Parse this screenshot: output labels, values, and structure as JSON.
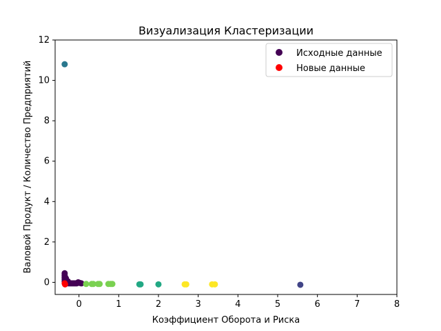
{
  "chart_data": {
    "type": "scatter",
    "title": "Визуализация Кластеризации",
    "xlabel": "Коэффициент Оборота и Риска",
    "ylabel": "Валовой Продукт / Количество Предприятий",
    "xlim": [
      -0.6,
      8
    ],
    "ylim": [
      -0.6,
      12
    ],
    "xticks": [
      0,
      1,
      2,
      3,
      4,
      5,
      6,
      7,
      8
    ],
    "yticks": [
      0,
      2,
      4,
      6,
      8,
      10,
      12
    ],
    "grid": false,
    "legend_position": "top-right",
    "series": [
      {
        "name": "Исходные данные",
        "legend_color": "#440154",
        "points": [
          {
            "x": -0.36,
            "y": 0.45,
            "color": "#440154"
          },
          {
            "x": -0.36,
            "y": 0.35,
            "color": "#440154"
          },
          {
            "x": -0.36,
            "y": 0.25,
            "color": "#440154"
          },
          {
            "x": -0.36,
            "y": 0.15,
            "color": "#440154"
          },
          {
            "x": -0.36,
            "y": 0.05,
            "color": "#440154"
          },
          {
            "x": -0.35,
            "y": -0.02,
            "color": "#440154"
          },
          {
            "x": -0.34,
            "y": 0.1,
            "color": "#440154"
          },
          {
            "x": -0.33,
            "y": 0.2,
            "color": "#440154"
          },
          {
            "x": -0.3,
            "y": 0.0,
            "color": "#440154"
          },
          {
            "x": -0.28,
            "y": 0.05,
            "color": "#440154"
          },
          {
            "x": -0.26,
            "y": -0.05,
            "color": "#440154"
          },
          {
            "x": -0.22,
            "y": -0.05,
            "color": "#440154"
          },
          {
            "x": -0.18,
            "y": -0.05,
            "color": "#440154"
          },
          {
            "x": -0.14,
            "y": -0.05,
            "color": "#440154"
          },
          {
            "x": -0.1,
            "y": -0.05,
            "color": "#440154"
          },
          {
            "x": -0.06,
            "y": -0.05,
            "color": "#440154"
          },
          {
            "x": -0.02,
            "y": 0.0,
            "color": "#440154"
          },
          {
            "x": 0.02,
            "y": -0.03,
            "color": "#440154"
          },
          {
            "x": 0.06,
            "y": -0.05,
            "color": "#440154"
          },
          {
            "x": 0.18,
            "y": -0.08,
            "color": "#7ad151"
          },
          {
            "x": 0.32,
            "y": -0.08,
            "color": "#7ad151"
          },
          {
            "x": 0.36,
            "y": -0.08,
            "color": "#7ad151"
          },
          {
            "x": 0.48,
            "y": -0.08,
            "color": "#7ad151"
          },
          {
            "x": 0.52,
            "y": -0.08,
            "color": "#7ad151"
          },
          {
            "x": 0.74,
            "y": -0.08,
            "color": "#7ad151"
          },
          {
            "x": 0.8,
            "y": -0.08,
            "color": "#7ad151"
          },
          {
            "x": 0.84,
            "y": -0.08,
            "color": "#7ad151"
          },
          {
            "x": 1.52,
            "y": -0.1,
            "color": "#22a884"
          },
          {
            "x": 1.55,
            "y": -0.1,
            "color": "#22a884"
          },
          {
            "x": 2.0,
            "y": -0.1,
            "color": "#22a884"
          },
          {
            "x": 2.66,
            "y": -0.1,
            "color": "#fde725"
          },
          {
            "x": 2.7,
            "y": -0.1,
            "color": "#fde725"
          },
          {
            "x": 3.35,
            "y": -0.1,
            "color": "#fde725"
          },
          {
            "x": 3.42,
            "y": -0.1,
            "color": "#fde725"
          },
          {
            "x": 5.57,
            "y": -0.12,
            "color": "#414487"
          },
          {
            "x": -0.36,
            "y": 10.8,
            "color": "#2a788e"
          }
        ]
      },
      {
        "name": "Новые данные",
        "legend_color": "#ff0000",
        "points": [
          {
            "x": -0.36,
            "y": -0.05,
            "color": "#ff0000"
          },
          {
            "x": -0.35,
            "y": -0.1,
            "color": "#ff0000"
          }
        ]
      }
    ]
  }
}
